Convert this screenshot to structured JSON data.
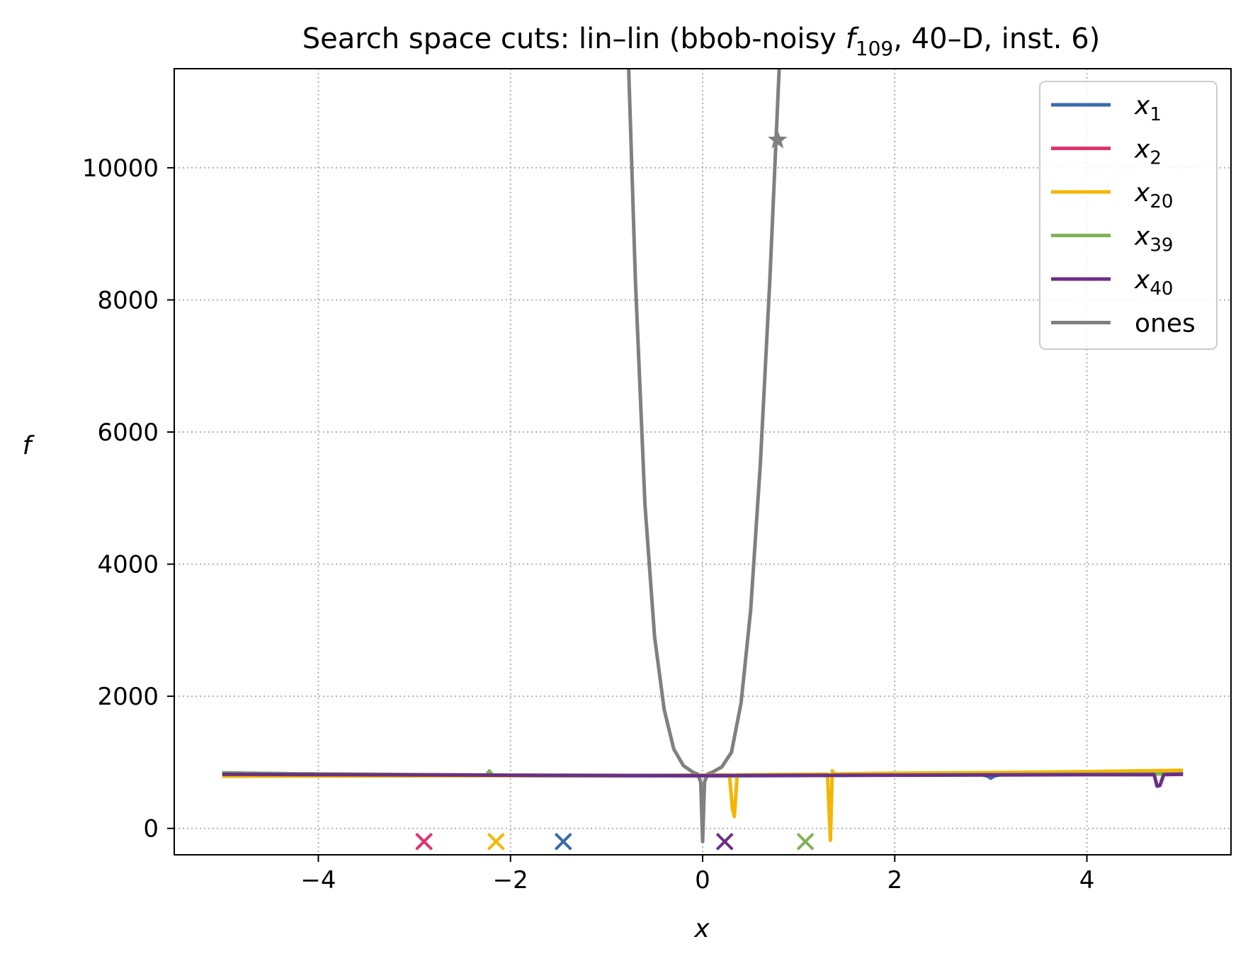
{
  "chart_data": {
    "type": "line",
    "title": {
      "prefix": "Search space cuts: lin–lin (bbob-noisy ",
      "func_symbol": "f",
      "func_sub": "109",
      "suffix": ", 40–D, inst. 6)"
    },
    "xlabel": "x",
    "ylabel": "f",
    "xlim": [
      -5.5,
      5.5
    ],
    "ylim": [
      -400,
      11500
    ],
    "xticks": [
      -4,
      -2,
      0,
      2,
      4
    ],
    "xtick_labels": [
      "−4",
      "−2",
      "0",
      "2",
      "4"
    ],
    "yticks": [
      0,
      2000,
      4000,
      6000,
      8000,
      10000
    ],
    "ytick_labels": [
      "0",
      "2000",
      "4000",
      "6000",
      "8000",
      "10000"
    ],
    "grid": true,
    "grid_style": "dotted",
    "legend_position": "top-right",
    "series": [
      {
        "name": "x1",
        "label_base": "x",
        "label_sub": "1",
        "color": "#3b6aad",
        "x": [
          -5,
          -4,
          -3,
          -2,
          -1,
          0,
          1,
          2,
          2.9,
          2.97,
          3.0,
          3.03,
          3.1,
          4,
          5
        ],
        "y": [
          840,
          822,
          808,
          800,
          796,
          796,
          800,
          808,
          815,
          790,
          760,
          790,
          815,
          820,
          830
        ],
        "marker_x": -1.45,
        "marker_y": -200,
        "marker": "x"
      },
      {
        "name": "x2",
        "label_base": "x",
        "label_sub": "2",
        "color": "#e0336e",
        "x": [
          -5,
          -4,
          -3,
          -2,
          -1,
          0,
          1,
          2,
          3,
          4,
          5
        ],
        "y": [
          815,
          810,
          805,
          802,
          800,
          801,
          805,
          810,
          815,
          820,
          830
        ],
        "marker_x": -2.9,
        "marker_y": -200,
        "marker": "x"
      },
      {
        "name": "x20",
        "label_base": "x",
        "label_sub": "20",
        "color": "#f2b705",
        "x": [
          -5,
          -4,
          -3,
          -2,
          -1,
          0,
          0.28,
          0.31,
          0.33,
          0.36,
          0.6,
          1.0,
          1.3,
          1.33,
          1.35,
          1.37,
          1.4,
          2,
          3,
          4,
          5
        ],
        "y": [
          790,
          792,
          795,
          797,
          800,
          805,
          808,
          300,
          180,
          808,
          812,
          818,
          822,
          -180,
          870,
          830,
          825,
          835,
          845,
          860,
          880
        ],
        "marker_x": -2.15,
        "marker_y": -200,
        "marker": "x"
      },
      {
        "name": "x39",
        "label_base": "x",
        "label_sub": "39",
        "color": "#7fb356",
        "x": [
          -5,
          -4,
          -3,
          -2.25,
          -2.22,
          -2.19,
          -2,
          -1,
          0,
          1,
          2,
          3,
          4,
          5
        ],
        "y": [
          835,
          825,
          815,
          808,
          870,
          808,
          805,
          801,
          800,
          803,
          808,
          813,
          818,
          825
        ],
        "marker_x": 1.07,
        "marker_y": -200,
        "marker": "x"
      },
      {
        "name": "x40",
        "label_base": "x",
        "label_sub": "40",
        "color": "#6b2f86",
        "x": [
          -5,
          -4,
          -3,
          -2,
          -1,
          0,
          1,
          2,
          3,
          4,
          4.7,
          4.73,
          4.76,
          4.8,
          5
        ],
        "y": [
          820,
          815,
          810,
          805,
          802,
          800,
          802,
          805,
          808,
          812,
          815,
          640,
          650,
          815,
          818
        ],
        "marker_x": 0.23,
        "marker_y": -200,
        "marker": "x"
      },
      {
        "name": "ones",
        "label_base": "ones",
        "label_sub": "",
        "color": "#808080",
        "x": [
          -0.77,
          -0.7,
          -0.6,
          -0.5,
          -0.4,
          -0.3,
          -0.2,
          -0.1,
          -0.05,
          -0.02,
          0,
          0.02,
          0.05,
          0.1,
          0.2,
          0.3,
          0.4,
          0.5,
          0.6,
          0.7,
          0.8
        ],
        "y": [
          11500,
          8300,
          4900,
          2900,
          1800,
          1200,
          950,
          850,
          820,
          700,
          -200,
          700,
          820,
          850,
          930,
          1150,
          1900,
          3300,
          5500,
          8300,
          11600
        ],
        "marker_x": 0.78,
        "marker_y": 10420,
        "marker": "star"
      }
    ]
  }
}
